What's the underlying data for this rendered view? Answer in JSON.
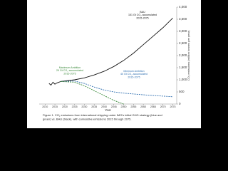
{
  "chart_data": {
    "type": "line",
    "x_label": "Year",
    "y_label": "CO₂ emissions (million tonnes per year)",
    "caption": [
      "Figure 1. CO₂ emissions from international shipping under IMO's initial GHG strategy (blue and",
      "green) vs. BAU (black), with cumulative emissions 2015 through 2075."
    ],
    "xlim": [
      2007,
      2077
    ],
    "xticks": [
      2010,
      2015,
      2020,
      2025,
      2030,
      2035,
      2040,
      2045,
      2050,
      2055,
      2060,
      2065,
      2070,
      2075
    ],
    "ylim": [
      0,
      4000
    ],
    "yticks": [
      0,
      500,
      {
        "value": 1000,
        "label": "1,000"
      },
      {
        "value": 1500,
        "label": "1,500"
      },
      {
        "value": 2000,
        "label": "2,000"
      },
      {
        "value": 2500,
        "label": "2,500"
      },
      {
        "value": 3000,
        "label": "3,000"
      },
      {
        "value": 3500,
        "label": "3,500"
      },
      {
        "value": 4000,
        "label": "4,000"
      }
    ],
    "series": [
      {
        "color": "#111111",
        "dash": false,
        "x": [
          2012,
          2013,
          2014,
          2015,
          2016,
          2017,
          2018
        ],
        "values": [
          850,
          780,
          900,
          820,
          870,
          900,
          930
        ]
      },
      {
        "color": "#111111",
        "dash": false,
        "x": [
          2018,
          2025,
          2030,
          2035,
          2040,
          2045,
          2050,
          2055,
          2060,
          2065,
          2070,
          2075
        ],
        "values": [
          930,
          1000,
          1080,
          1200,
          1350,
          1550,
          1800,
          2100,
          2450,
          2800,
          3150,
          3550
        ]
      },
      {
        "color": "#2f6fb0",
        "dash": true,
        "x": [
          2018,
          2025,
          2030,
          2035,
          2040,
          2045,
          2050,
          2060,
          2075
        ],
        "values": [
          930,
          950,
          850,
          700,
          580,
          500,
          450,
          380,
          300
        ]
      },
      {
        "color": "#3a8a3a",
        "dash": true,
        "x": [
          2018,
          2025,
          2030,
          2035,
          2040,
          2045,
          2050
        ],
        "values": [
          930,
          900,
          750,
          550,
          350,
          150,
          0
        ]
      }
    ],
    "annotations": [
      {
        "color": "#111111",
        "lines": [
          "BAU",
          "151 Gt CO₂ accumulated",
          "2015-2075"
        ]
      },
      {
        "color": "#3a8a3a",
        "lines": [
          "Maximum Ambition",
          "29 Gt CO₂ accumulated",
          "2015-2075"
        ]
      },
      {
        "color": "#2f6fb0",
        "lines": [
          "Minimum Ambition",
          "40 Gt CO₂ accumulated",
          "2015-2075"
        ]
      }
    ]
  }
}
